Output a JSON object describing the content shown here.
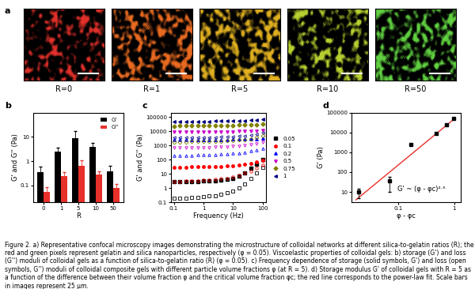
{
  "panel_a": {
    "panel": "a",
    "images": [
      {
        "label": "R=0",
        "color": "#e0302a"
      },
      {
        "label": "R=1",
        "color": "#e86a20"
      },
      {
        "label": "R=5",
        "color": "#e0b020"
      },
      {
        "label": "R=10",
        "color": "#b8d030"
      },
      {
        "label": "R=50",
        "color": "#60d040"
      }
    ]
  },
  "chart_data": [
    {
      "panel": "b",
      "type": "bar",
      "categories": [
        "0",
        "1",
        "5",
        "10",
        "50"
      ],
      "x_label": "R",
      "y_label": "G' and G'' (Pa)",
      "log": "y",
      "ylim": [
        0.02,
        100
      ],
      "yticks": [
        0.1,
        1,
        10
      ],
      "legend": "upper right",
      "series": [
        {
          "name": "G'",
          "color": "#000000",
          "values": [
            0.35,
            2.4,
            9,
            3.8,
            0.38
          ],
          "errors": [
            0.25,
            1.3,
            8,
            2,
            0.25
          ]
        },
        {
          "name": "G''",
          "color": "#e8302a",
          "values": [
            0.055,
            0.25,
            0.65,
            0.28,
            0.08
          ],
          "errors": [
            0.03,
            0.1,
            0.4,
            0.1,
            0.03
          ]
        }
      ]
    },
    {
      "panel": "c",
      "type": "scatter",
      "x_label": "Frequency (Hz)",
      "y_label": "G' and G'' (Pa)",
      "log": true,
      "x": [
        0.1,
        0.158,
        0.251,
        0.398,
        0.631,
        1,
        1.58,
        2.51,
        3.98,
        6.31,
        10,
        15.8,
        25.1,
        39.8,
        63.1,
        100
      ],
      "xlim": [
        0.08,
        130
      ],
      "xticks": [
        0.1,
        1,
        10,
        100
      ],
      "ylim": [
        0.1,
        200000
      ],
      "yticks": [
        0.1,
        1,
        10,
        100,
        1000,
        10000,
        100000
      ],
      "legend": "right",
      "series": [
        {
          "name": "0.05",
          "color": "#000000",
          "marker": "square",
          "values": [
            3,
            3,
            3,
            3,
            3,
            3.1,
            3.2,
            3.4,
            3.7,
            4.2,
            5,
            7,
            12,
            25,
            50,
            100
          ],
          "loss_values": [
            0.2,
            0.2,
            0.2,
            0.21,
            0.22,
            0.24,
            0.27,
            0.3,
            0.36,
            0.45,
            0.6,
            1,
            2,
            5,
            12,
            30
          ]
        },
        {
          "name": "0.1",
          "color": "#ff0000",
          "marker": "circle",
          "values": [
            30,
            30,
            30,
            31,
            31,
            32,
            32,
            33,
            34,
            35,
            37,
            40,
            45,
            55,
            70,
            90
          ],
          "loss_values": [
            3,
            3,
            3.1,
            3.2,
            3.3,
            3.5,
            3.7,
            4,
            4.5,
            5,
            6,
            8,
            11,
            16,
            25,
            40
          ]
        },
        {
          "name": "0.2",
          "color": "#0000ff",
          "marker": "triangle_up",
          "values": [
            2400,
            2450,
            2450,
            2500,
            2500,
            2550,
            2550,
            2600,
            2600,
            2650,
            2700,
            2750,
            2800,
            2900,
            3000,
            3200
          ],
          "loss_values": [
            200,
            200,
            200,
            205,
            210,
            215,
            220,
            230,
            240,
            250,
            270,
            300,
            340,
            400,
            500,
            650
          ]
        },
        {
          "name": "0.5",
          "color": "#cc00cc",
          "marker": "triangle_down",
          "values": [
            8500,
            8600,
            8700,
            8800,
            8900,
            9000,
            9100,
            9200,
            9300,
            9400,
            9500,
            9700,
            9900,
            10200,
            10600,
            11000
          ],
          "loss_values": [
            700,
            700,
            700,
            710,
            720,
            730,
            740,
            760,
            780,
            800,
            850,
            900,
            1000,
            1150,
            1400,
            1800
          ]
        },
        {
          "name": "0.75",
          "color": "#808000",
          "marker": "diamond",
          "values": [
            23000,
            23500,
            24000,
            24200,
            24500,
            25000,
            25200,
            25500,
            25800,
            26000,
            26500,
            27000,
            27500,
            28500,
            30000,
            32000
          ],
          "loss_values": [
            1800,
            1800,
            1800,
            1850,
            1850,
            1900,
            1900,
            2000,
            2050,
            2100,
            2200,
            2400,
            2600,
            3000,
            3600,
            4500
          ]
        },
        {
          "name": "1",
          "color": "#000080",
          "marker": "triangle_left",
          "values": [
            46000,
            47000,
            47500,
            48000,
            49000,
            50000,
            50500,
            51000,
            52000,
            53000,
            54000,
            55000,
            57000,
            60000,
            64000,
            70000
          ],
          "loss_values": [
            3500,
            3500,
            3500,
            3600,
            3600,
            3700,
            3800,
            3900,
            4000,
            4100,
            4300,
            4600,
            5000,
            5600,
            6500,
            8000
          ]
        }
      ]
    },
    {
      "panel": "d",
      "type": "scatter",
      "x_label": "φ - φc",
      "y_label": "G' (Pa)",
      "log": true,
      "x": [
        0.02,
        0.07,
        0.17,
        0.47,
        0.72,
        0.97
      ],
      "values": [
        10,
        35,
        2500,
        9000,
        25000,
        50000
      ],
      "errors": [
        5,
        25,
        300,
        800,
        2000,
        3000
      ],
      "color": "#000000",
      "marker": "square",
      "fit": {
        "x": [
          0.018,
          1.05
        ],
        "values": [
          4,
          55000
        ],
        "color": "#e8302a"
      },
      "annotations": [
        "G' ~ (φ - φc)²·⁵"
      ],
      "xlim": [
        0.015,
        1.3
      ],
      "xticks": [
        0.1,
        1
      ],
      "ylim": [
        3,
        100000
      ],
      "yticks": [
        10,
        100,
        1000,
        10000,
        100000
      ]
    }
  ],
  "caption": "Figure 2. a) Representative confocal microscopy images demonstrating the microstructure of colloidal networks at different silica-to-gelatin ratios (R); the red and green pixels represent gelatin and silica nanoparticles, respectively (φ = 0.05). Viscoelastic properties of colloidal gels: b) storage (G') and loss (G'') moduli of colloidal gels as a function of silica-to-gelatin ratio (R) (φ = 0.05). c) Frequency dependence of storage (solid symbols, G') and loss (open symbols, G'') moduli of colloidal composite gels with different particle volume fractions φ (at R = 5). d) Storage modulus G' of colloidal gels with R = 5 as a function of the difference between their volume fraction φ and the critical volume fraction φc; the red line corresponds to the power-law fit. Scale bars in images represent 25 µm."
}
